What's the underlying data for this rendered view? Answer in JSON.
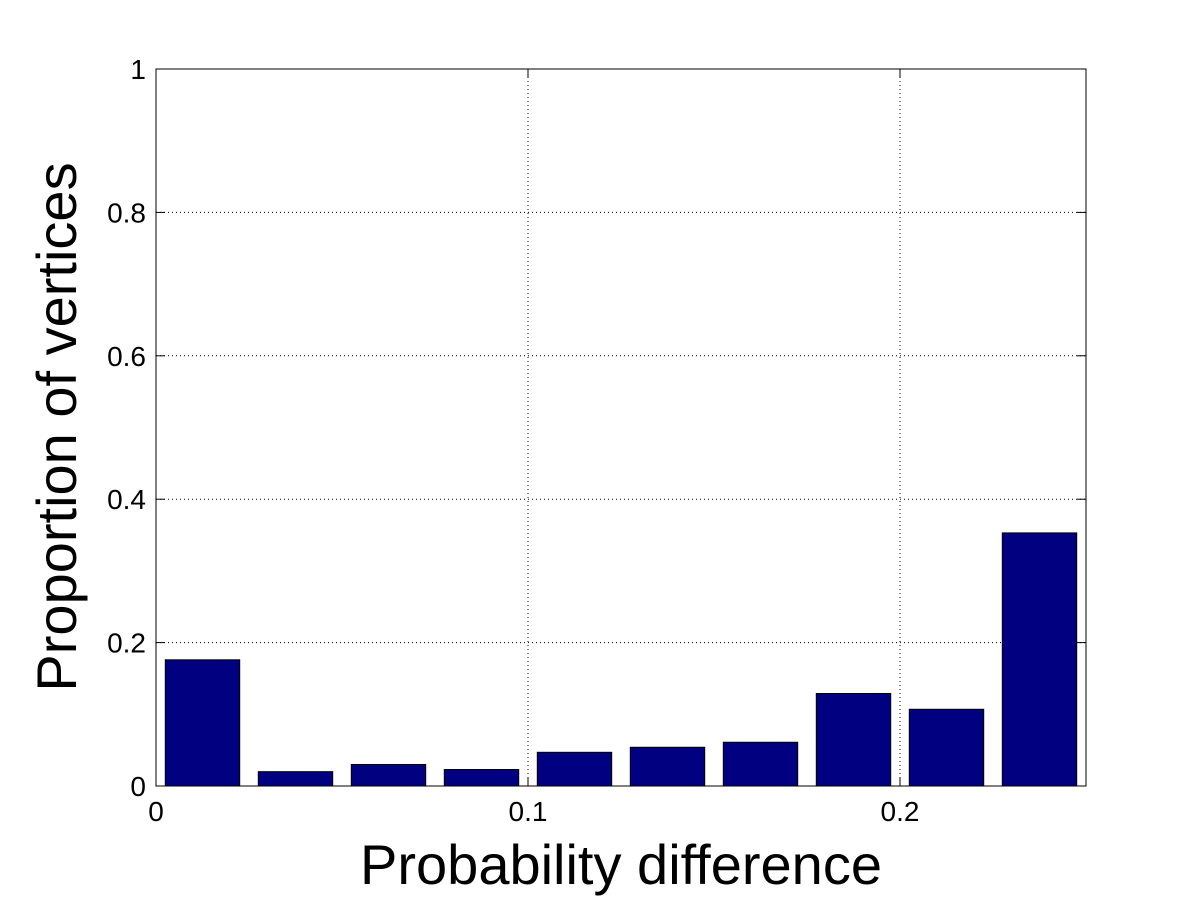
{
  "chart_data": {
    "type": "bar",
    "title": "",
    "xlabel": "Probability difference",
    "ylabel": "Proportion of vertices",
    "xlim": [
      0,
      0.25
    ],
    "ylim": [
      0,
      1
    ],
    "xticks": [
      0,
      0.1,
      0.2
    ],
    "xtick_labels": [
      "0",
      "0.1",
      "0.2"
    ],
    "yticks": [
      0,
      0.2,
      0.4,
      0.6,
      0.8,
      1
    ],
    "ytick_labels": [
      "0",
      "0.2",
      "0.4",
      "0.6",
      "0.8",
      "1"
    ],
    "grid": true,
    "bar_color": "#000080",
    "bin_width": 0.025,
    "x": [
      0.0125,
      0.0375,
      0.0625,
      0.0875,
      0.1125,
      0.1375,
      0.1625,
      0.1875,
      0.2125,
      0.2375
    ],
    "values": [
      0.176,
      0.02,
      0.03,
      0.023,
      0.047,
      0.054,
      0.061,
      0.129,
      0.107,
      0.353
    ]
  }
}
